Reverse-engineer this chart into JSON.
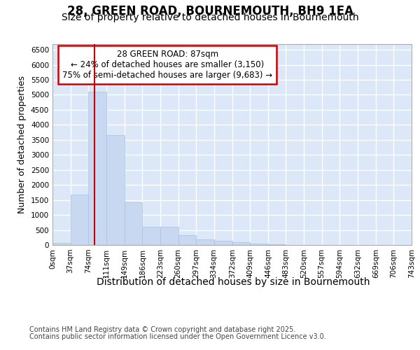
{
  "title_line1": "28, GREEN ROAD, BOURNEMOUTH, BH9 1EA",
  "title_line2": "Size of property relative to detached houses in Bournemouth",
  "xlabel": "Distribution of detached houses by size in Bournemouth",
  "ylabel": "Number of detached properties",
  "footnote_line1": "Contains HM Land Registry data © Crown copyright and database right 2025.",
  "footnote_line2": "Contains public sector information licensed under the Open Government Licence v3.0.",
  "annotation_line1": "28 GREEN ROAD: 87sqm",
  "annotation_line2": "← 24% of detached houses are smaller (3,150)",
  "annotation_line3": "75% of semi-detached houses are larger (9,683) →",
  "bar_color": "#c8d8f0",
  "bar_edge_color": "#a8c0e0",
  "vline_color": "#cc0000",
  "annotation_box_edge_color": "#cc0000",
  "fig_bg_color": "#ffffff",
  "plot_bg_color": "#dce8f8",
  "bin_edges": [
    0,
    37,
    74,
    111,
    149,
    186,
    223,
    260,
    297,
    334,
    372,
    409,
    446,
    483,
    520,
    557,
    594,
    632,
    669,
    706,
    743
  ],
  "bar_heights": [
    60,
    1670,
    5100,
    3650,
    1430,
    600,
    600,
    320,
    180,
    140,
    100,
    55,
    20,
    10,
    8,
    4,
    2,
    1,
    1,
    1
  ],
  "ylim": [
    0,
    6700
  ],
  "yticks": [
    0,
    500,
    1000,
    1500,
    2000,
    2500,
    3000,
    3500,
    4000,
    4500,
    5000,
    5500,
    6000,
    6500
  ],
  "vline_x": 87,
  "grid_color": "#ffffff",
  "xtick_labels": [
    "0sqm",
    "37sqm",
    "74sqm",
    "111sqm",
    "149sqm",
    "186sqm",
    "223sqm",
    "260sqm",
    "297sqm",
    "334sqm",
    "372sqm",
    "409sqm",
    "446sqm",
    "483sqm",
    "520sqm",
    "557sqm",
    "594sqm",
    "632sqm",
    "669sqm",
    "706sqm",
    "743sqm"
  ],
  "title_fontsize": 12,
  "subtitle_fontsize": 10,
  "tick_fontsize": 7.5,
  "ylabel_fontsize": 9,
  "xlabel_fontsize": 10,
  "footnote_fontsize": 7,
  "annotation_fontsize": 8.5
}
